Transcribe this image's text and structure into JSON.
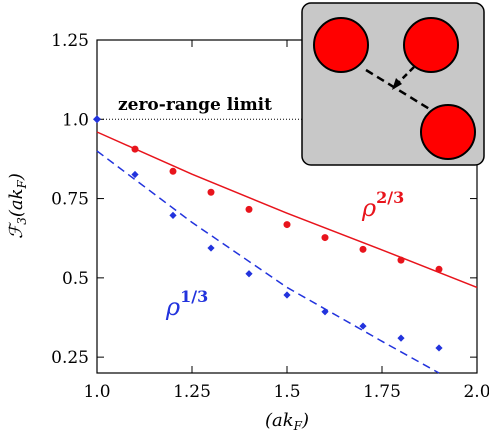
{
  "chart_data": {
    "type": "scatter",
    "xlabel": "(ak_F)",
    "ylabel": "F_3(ak_F)",
    "xlim": [
      1.0,
      2.0
    ],
    "ylim": [
      0.2,
      1.25
    ],
    "x_ticks": [
      "1.0",
      "1.25",
      "1.5",
      "1.75",
      "2.0"
    ],
    "y_ticks": [
      "0.25",
      "0.5",
      "0.75",
      "1.0",
      "1.25"
    ],
    "annotation": "zero-range limit",
    "annotation_y": 1.0,
    "zero_range_point": {
      "x": 1.0,
      "y": 1.0
    },
    "series": [
      {
        "name": "ρ^{2/3}",
        "label_main": "ρ",
        "label_exp": "2/3",
        "color": "#e8141c",
        "marker": "circle",
        "line_style": "solid",
        "points": [
          [
            1.1,
            0.906
          ],
          [
            1.2,
            0.836
          ],
          [
            1.3,
            0.77
          ],
          [
            1.4,
            0.716
          ],
          [
            1.5,
            0.668
          ],
          [
            1.6,
            0.627
          ],
          [
            1.7,
            0.59
          ],
          [
            1.8,
            0.556
          ],
          [
            1.9,
            0.527
          ]
        ],
        "fit": [
          [
            1.0,
            0.96
          ],
          [
            1.25,
            0.827
          ],
          [
            1.5,
            0.704
          ],
          [
            1.75,
            0.588
          ],
          [
            2.0,
            0.47
          ]
        ]
      },
      {
        "name": "ρ^{1/3}",
        "label_main": "ρ",
        "label_exp": "1/3",
        "color": "#2233dd",
        "marker": "diamond",
        "line_style": "dashed",
        "points": [
          [
            1.1,
            0.826
          ],
          [
            1.2,
            0.697
          ],
          [
            1.3,
            0.594
          ],
          [
            1.4,
            0.513
          ],
          [
            1.5,
            0.446
          ],
          [
            1.6,
            0.393
          ],
          [
            1.7,
            0.348
          ],
          [
            1.8,
            0.31
          ],
          [
            1.9,
            0.279
          ]
        ],
        "fit": [
          [
            1.0,
            0.9
          ],
          [
            1.25,
            0.675
          ],
          [
            1.5,
            0.47
          ],
          [
            1.75,
            0.3
          ],
          [
            1.9,
            0.2
          ]
        ]
      }
    ]
  },
  "inset": {
    "description": "three red particles, arrow indicating interaction",
    "colors": {
      "panel": "#c8c8c8",
      "particle": "#ff0000"
    }
  }
}
